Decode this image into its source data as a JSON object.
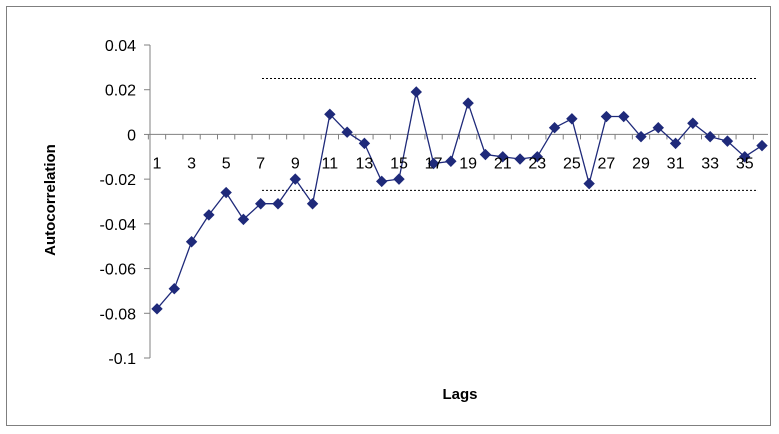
{
  "chart_data": {
    "type": "line",
    "title": "",
    "xlabel": "Lags",
    "ylabel": "Autocorrelation",
    "ylim": [
      -0.1,
      0.04
    ],
    "yticks": [
      0.04,
      0.02,
      0,
      -0.02,
      -0.04,
      -0.06,
      -0.08,
      -0.1
    ],
    "ytick_labels": [
      "0.04",
      "0.02",
      "0",
      "-0.02",
      "-0.04",
      "-0.06",
      "-0.08",
      "-0.1"
    ],
    "xtick_labels": [
      "1",
      "3",
      "5",
      "7",
      "9",
      "11",
      "13",
      "15",
      "17",
      "19",
      "21",
      "23",
      "25",
      "27",
      "29",
      "31",
      "33",
      "35"
    ],
    "grid": false,
    "legend": "none",
    "series_color": "#1f2a7a",
    "confidence_bounds": [
      0.025,
      -0.025
    ],
    "series": [
      {
        "x": [
          1,
          2,
          3,
          4,
          5,
          6,
          7,
          8,
          9,
          10,
          11,
          12,
          13,
          14,
          15,
          16,
          17,
          18,
          19,
          20,
          21,
          22,
          23,
          24,
          25,
          26,
          27,
          28,
          29,
          30,
          31,
          32,
          33,
          34,
          35,
          36
        ],
        "values": [
          -0.078,
          -0.069,
          -0.048,
          -0.036,
          -0.026,
          -0.038,
          -0.031,
          -0.031,
          -0.02,
          -0.031,
          0.009,
          0.001,
          -0.004,
          -0.021,
          -0.02,
          0.019,
          -0.013,
          -0.012,
          0.014,
          -0.009,
          -0.01,
          -0.011,
          -0.01,
          0.003,
          0.007,
          -0.022,
          0.008,
          0.008,
          -0.001,
          0.003,
          -0.004,
          0.005,
          -0.001,
          -0.003,
          -0.01,
          -0.005
        ]
      }
    ]
  }
}
